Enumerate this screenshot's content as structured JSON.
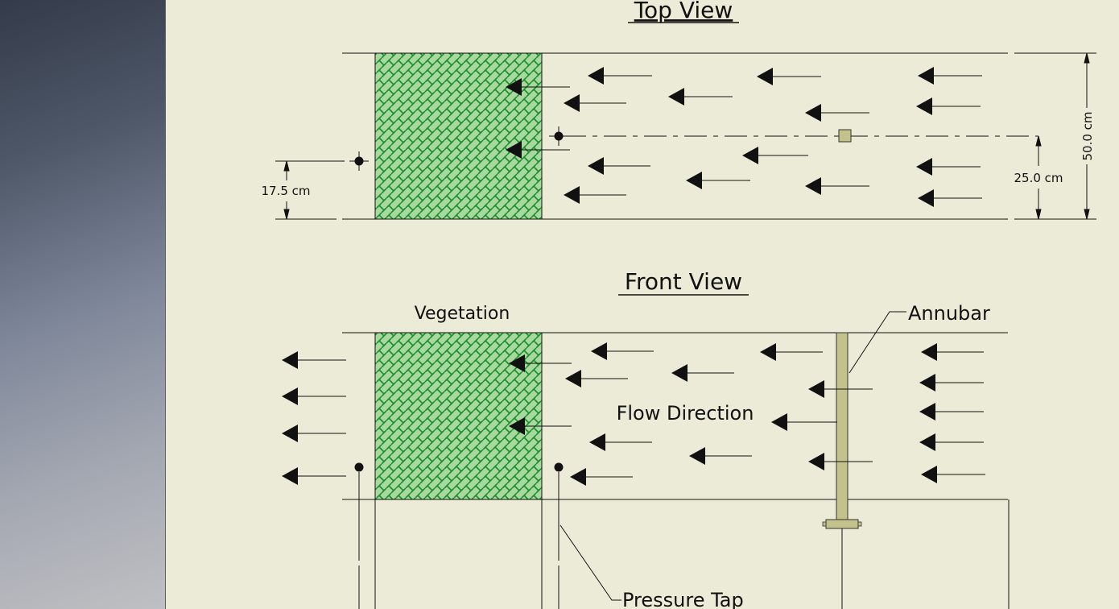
{
  "diagram": {
    "top_view_title": "Top View",
    "front_view_title": "Front View",
    "dim_17_5": "17.5 cm",
    "dim_25": "25.0 cm",
    "dim_50": "50.0 cm",
    "vegetation_label": "Vegetation",
    "annubar_label": "Annubar",
    "flow_direction_label": "Flow Direction",
    "pressure_tap_label": "Pressure Tap"
  },
  "colors": {
    "background": "#ecebd8",
    "vegetation_fill": "#a8d8a0",
    "vegetation_hatch": "#1a8f2a",
    "annubar_fill": "#c2c28a"
  }
}
